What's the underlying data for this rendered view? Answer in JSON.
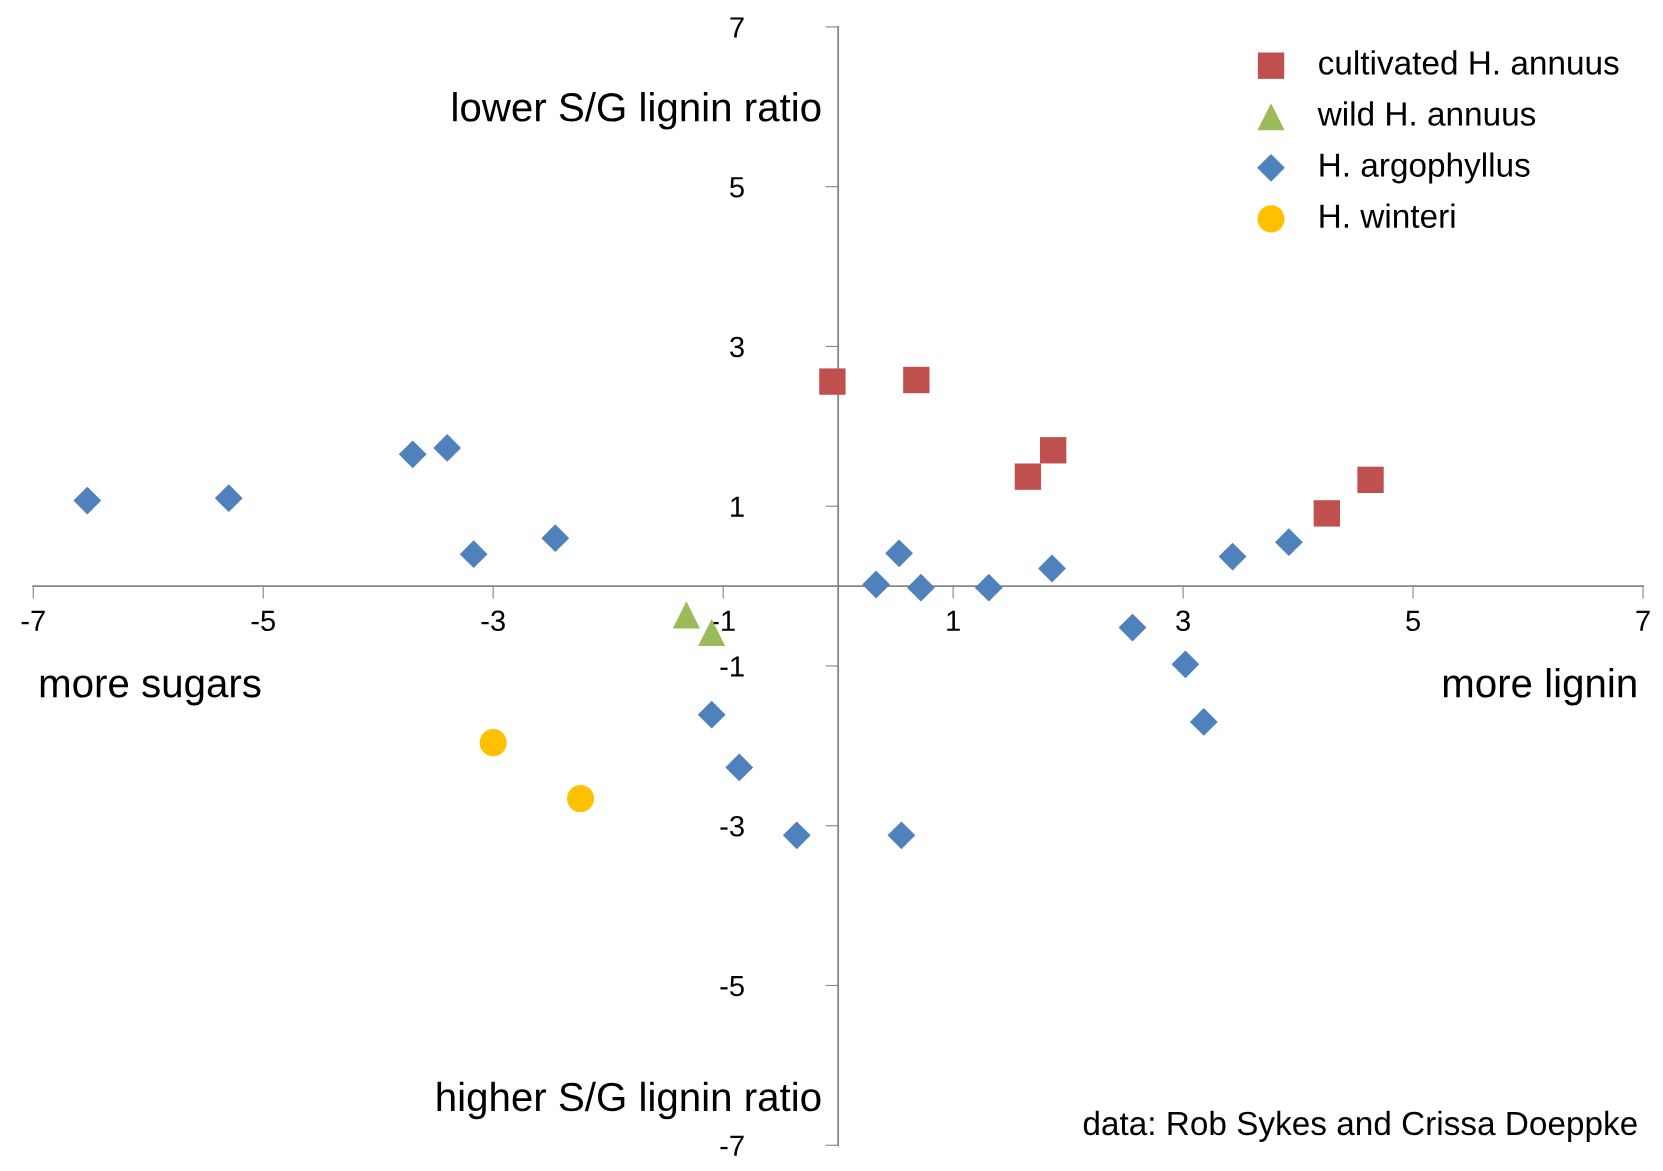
{
  "chart_data": {
    "type": "scatter",
    "xlim": [
      -7,
      7
    ],
    "ylim": [
      -7,
      7
    ],
    "xticks": [
      -7,
      -5,
      -3,
      -1,
      1,
      3,
      5,
      7
    ],
    "yticks": [
      -7,
      -5,
      -3,
      -1,
      1,
      3,
      5,
      7
    ],
    "grid": false,
    "legend": "top right",
    "series": [
      {
        "name": "cultivated H. annuus",
        "color": "#c0504d",
        "marker": "square",
        "x": [
          -0.05,
          0.68,
          1.65,
          1.87,
          4.25,
          4.63
        ],
        "values": [
          2.56,
          2.58,
          1.37,
          1.7,
          0.91,
          1.33
        ]
      },
      {
        "name": "wild H. annuus",
        "color": "#9bbb59",
        "marker": "triangle",
        "x": [
          -1.32,
          -1.1
        ],
        "values": [
          -0.36,
          -0.58
        ]
      },
      {
        "name": "H. argophyllus",
        "color": "#4f81bd",
        "marker": "diamond",
        "x": [
          -6.53,
          -5.3,
          -3.7,
          -3.4,
          -3.17,
          -2.46,
          0.53,
          0.33,
          0.72,
          1.31,
          1.86,
          3.43,
          3.92,
          2.56,
          3.02,
          3.18,
          -1.1,
          -0.86,
          -0.36,
          0.55
        ],
        "values": [
          1.07,
          1.1,
          1.65,
          1.73,
          0.4,
          0.6,
          0.41,
          0.02,
          -0.02,
          -0.02,
          0.22,
          0.37,
          0.55,
          -0.52,
          -0.98,
          -1.7,
          -1.61,
          -2.27,
          -3.12,
          -3.12
        ]
      },
      {
        "name": "H. winteri",
        "color": "#ffc000",
        "marker": "circle",
        "x": [
          -3.0,
          -2.24
        ],
        "values": [
          -1.96,
          -2.66
        ]
      }
    ],
    "annotations": [
      "lower S/G lignin ratio",
      "higher S/G lignin ratio",
      "more sugars",
      "more lignin",
      "data: Rob Sykes and Crissa Doeppke"
    ]
  }
}
